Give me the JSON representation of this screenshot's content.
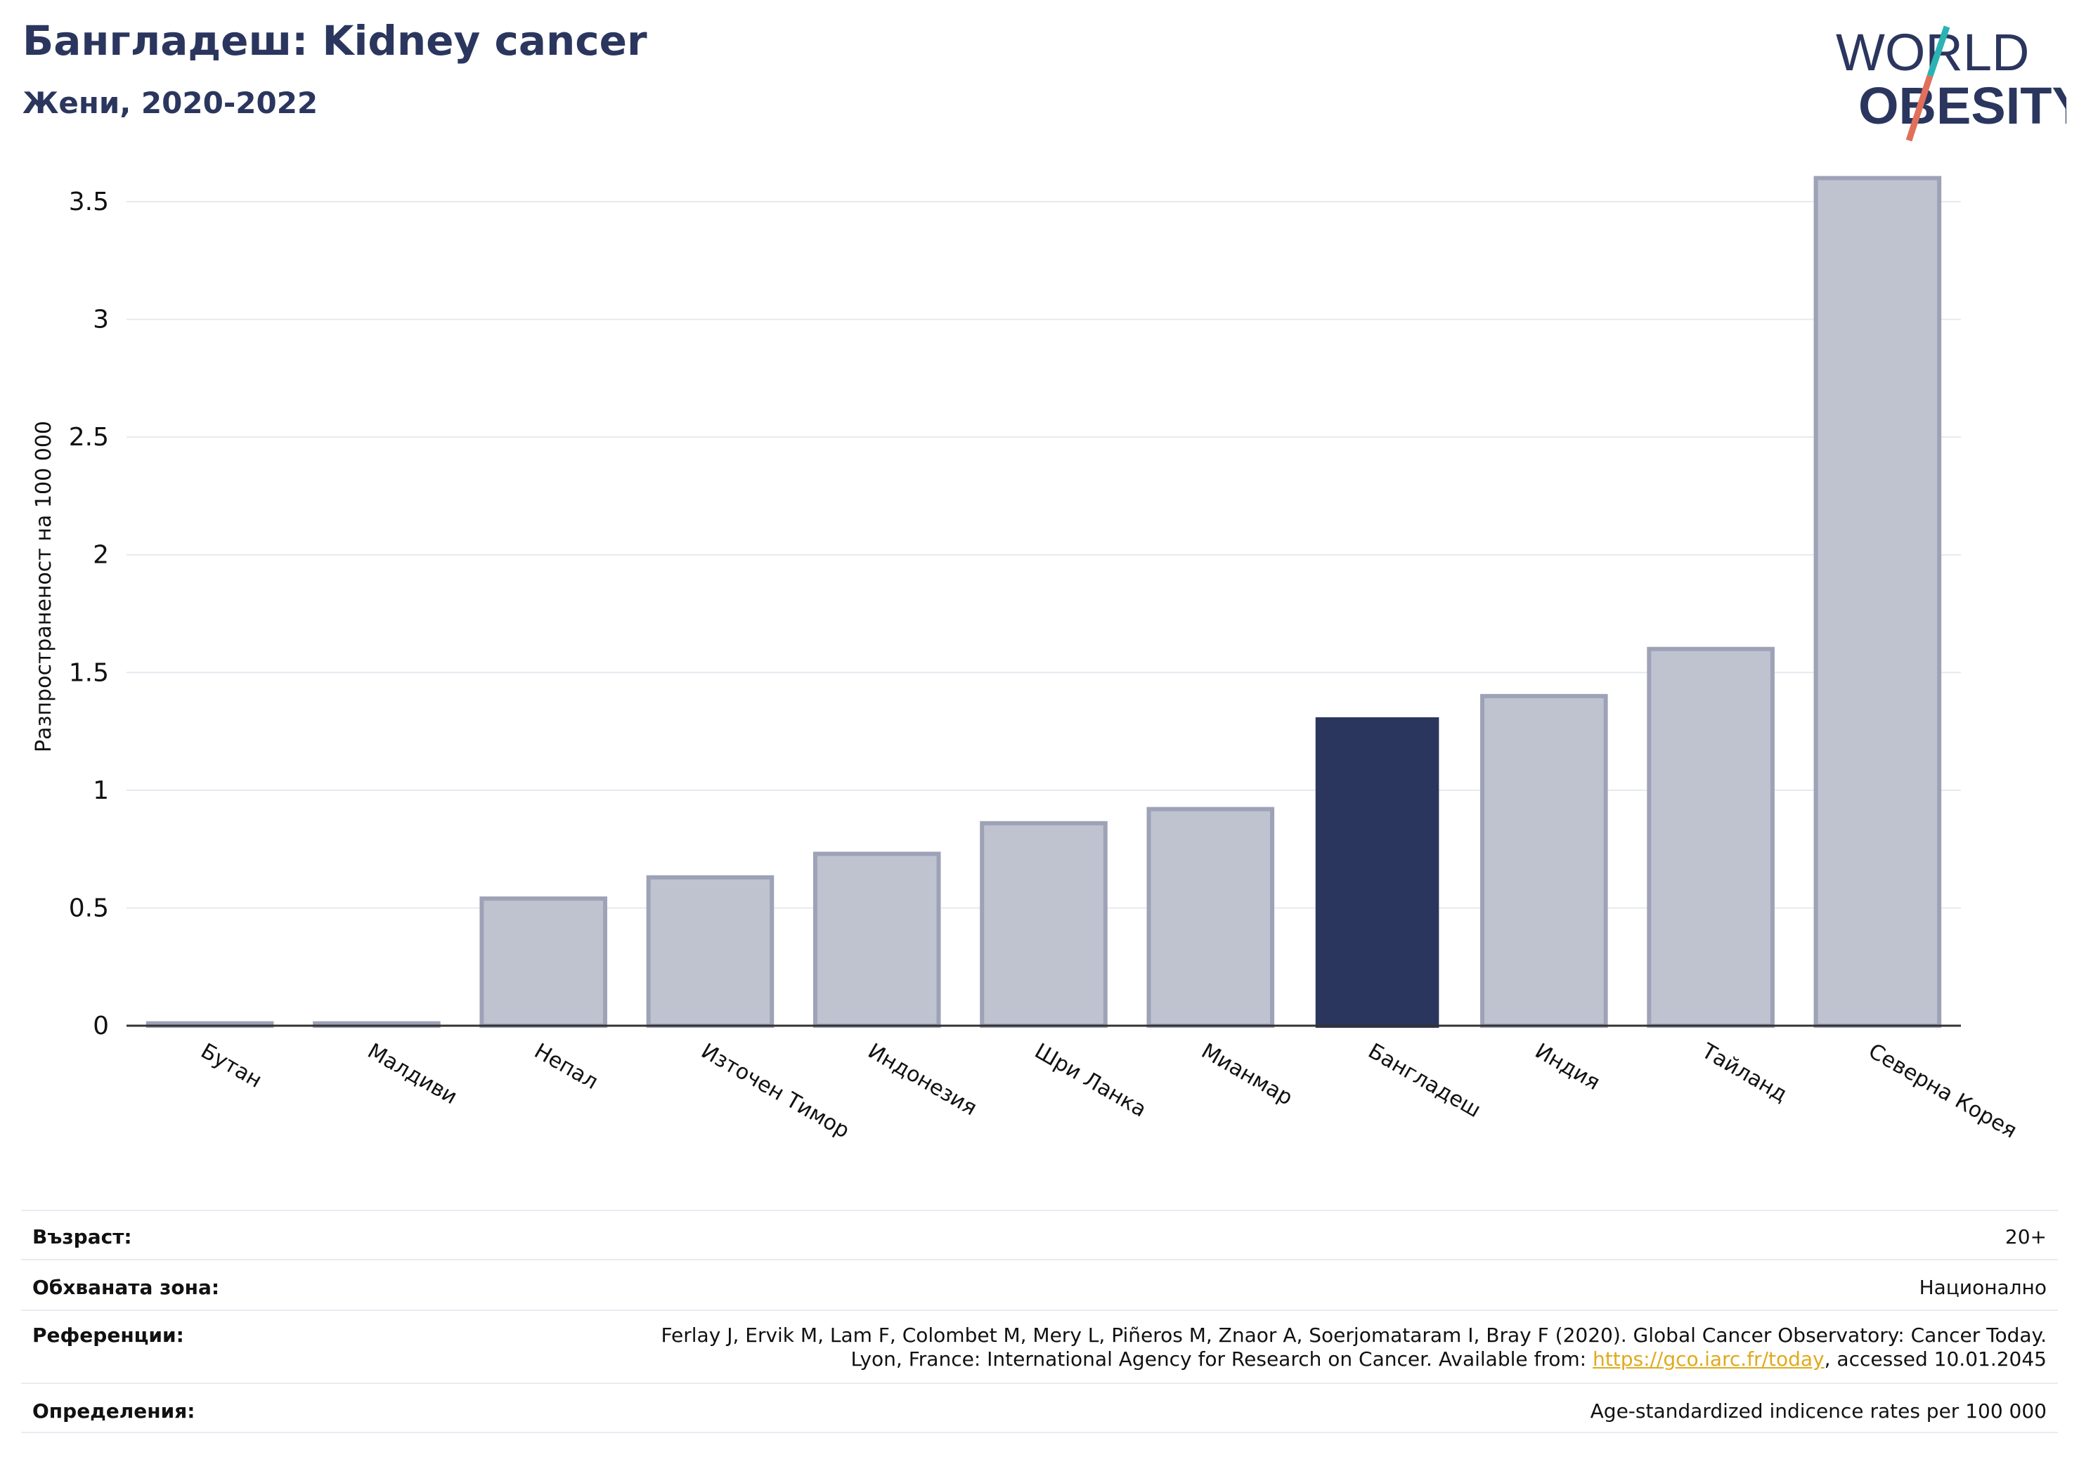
{
  "header": {
    "title": "Бангладеш: Kidney cancer",
    "subtitle": "Жени, 2020-2022"
  },
  "logo": {
    "line1": "WORLD",
    "line2": "OBESITY",
    "colors": {
      "text": "#2b365e",
      "slash_teal": "#2bb3b3",
      "slash_red": "#e0705a"
    }
  },
  "chart_data": {
    "type": "bar",
    "categories": [
      "Бутан",
      "Малдиви",
      "Непал",
      "Източен Тимор",
      "Индонезия",
      "Шри Ланка",
      "Мианмар",
      "Бангладеш",
      "Индия",
      "Тайланд",
      "Северна Корея"
    ],
    "values": [
      0.01,
      0.01,
      0.54,
      0.63,
      0.73,
      0.86,
      0.92,
      1.31,
      1.4,
      1.6,
      3.6
    ],
    "highlight": "Бангладеш",
    "ylabel": "Разпространеност  на 100 000",
    "ylim": [
      0,
      3.7
    ],
    "yticks": [
      0,
      0.5,
      1,
      1.5,
      2,
      2.5,
      3,
      3.5
    ],
    "ytick_labels": [
      "0",
      "0.5",
      "1",
      "1.5",
      "2",
      "2.5",
      "3",
      "3.5"
    ],
    "grid": true,
    "colors": {
      "bar": "#bfc2cf",
      "bar_edge": "#9ea2b6",
      "highlight": "#2b365e",
      "grid": "#e6e9ef",
      "axis": "#333333"
    }
  },
  "info_table": [
    {
      "label": "Възраст:",
      "value": "20+"
    },
    {
      "label": "Обхваната зона:",
      "value": "Национално"
    },
    {
      "label": "Референции:",
      "value_line1": "Ferlay J, Ervik M, Lam F, Colombet M, Mery L, Piñeros M, Znaor A, Soerjomataram I, Bray F (2020). Global Cancer Observatory: Cancer Today.",
      "value_line2_pre": "Lyon, France: International Agency for Research on Cancer. Available from: ",
      "value_link": "https://gco.iarc.fr/today",
      "value_line2_post": ", accessed 10.01.2045"
    },
    {
      "label": "Определения:",
      "value": "Age-standardized indicence rates per 100 000"
    }
  ]
}
